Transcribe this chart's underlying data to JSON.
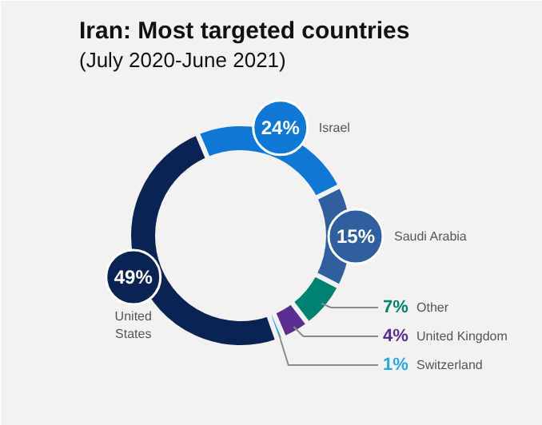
{
  "chart_data": {
    "type": "donut",
    "title": "Iran: Most targeted countries",
    "subtitle": "(July 2020-June 2021)",
    "categories": [
      "Israel",
      "Saudi Arabia",
      "Other",
      "United Kingdom",
      "Switzerland",
      "United States"
    ],
    "values": [
      24,
      15,
      7,
      4,
      1,
      49
    ],
    "colors": [
      "#0f78d4",
      "#2f5f9e",
      "#008272",
      "#5c2d91",
      "#29a8e0",
      "#0b2352"
    ],
    "value_labels": [
      "24%",
      "15%",
      "7%",
      "4%",
      "1%",
      "49%"
    ]
  }
}
